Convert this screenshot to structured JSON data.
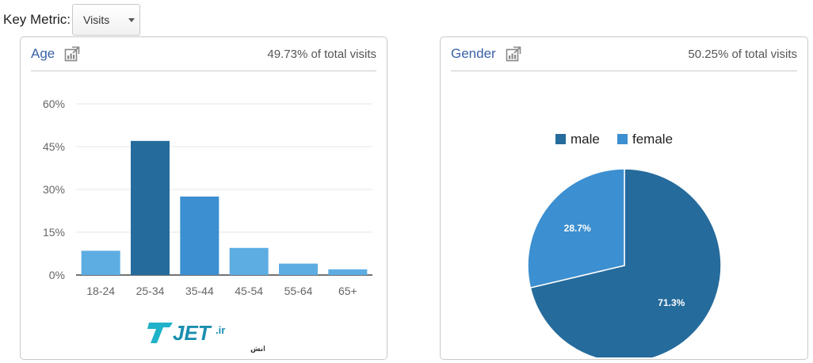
{
  "key_metric": {
    "label": "Key Metric:",
    "selected": "Visits"
  },
  "panels": [
    {
      "title": "Age",
      "share": "49.73% of total visits"
    },
    {
      "title": "Gender",
      "share": "50.25% of total visits"
    }
  ],
  "watermark": {
    "logo_text": "JET.ir",
    "tagline": "جت ، پرواز در آسمان دانش"
  },
  "chart_data": [
    {
      "type": "bar",
      "categories": [
        "18-24",
        "25-34",
        "35-44",
        "45-54",
        "55-64",
        "65+"
      ],
      "values": [
        8.5,
        47,
        27.5,
        9.5,
        4,
        2
      ],
      "y_ticks": [
        "60%",
        "45%",
        "30%",
        "15%",
        "0%"
      ],
      "ylim": [
        0,
        60
      ],
      "grid": true,
      "colors": [
        "#5dade2",
        "#256b9c",
        "#3c8fd0",
        "#5dade2",
        "#5dade2",
        "#5dade2"
      ]
    },
    {
      "type": "pie",
      "labels": [
        "male",
        "female"
      ],
      "values": [
        71.3,
        28.7
      ],
      "value_labels": [
        "71.3%",
        "28.7%"
      ],
      "colors": [
        "#256b9c",
        "#3c8fd0"
      ],
      "legend": "top"
    }
  ]
}
